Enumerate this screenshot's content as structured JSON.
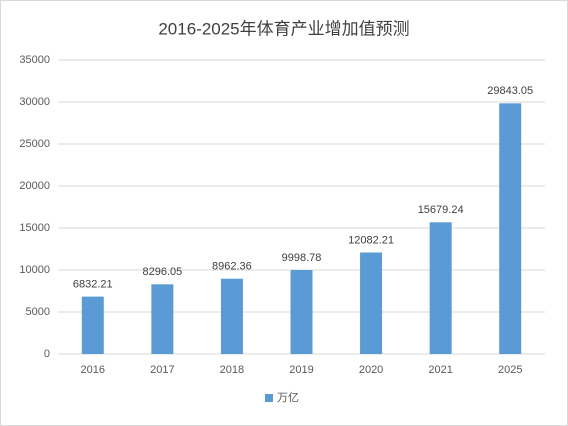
{
  "chart_data": {
    "type": "bar",
    "title": "2016-2025年体育产业增加值预测",
    "categories": [
      "2016",
      "2017",
      "2018",
      "2019",
      "2020",
      "2021",
      "2025"
    ],
    "series": [
      {
        "name": "万亿",
        "color": "#5b9bd5",
        "values": [
          6832.21,
          8296.05,
          8962.36,
          9998.78,
          12082.21,
          15679.24,
          29843.05
        ]
      }
    ],
    "ylim": [
      0,
      35000
    ],
    "yticks": [
      0,
      5000,
      10000,
      15000,
      20000,
      25000,
      30000,
      35000
    ],
    "grid": true,
    "legend": "bottom"
  }
}
